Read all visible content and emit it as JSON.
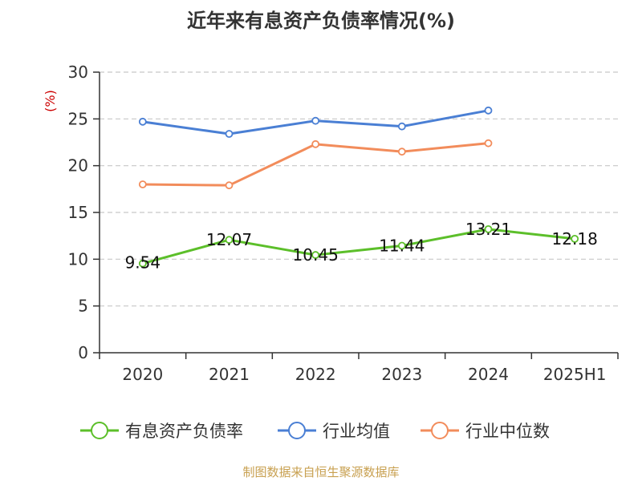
{
  "chart_data": {
    "type": "line",
    "title": "近年来有息资产负债率情况(%)",
    "ylabel": "(%)",
    "xlabel": "",
    "categories": [
      "2020",
      "2021",
      "2022",
      "2023",
      "2024",
      "2025H1"
    ],
    "ylim": [
      0,
      30
    ],
    "yticks": [
      0,
      5,
      10,
      15,
      20,
      25,
      30
    ],
    "grid": "horizontal-dashed",
    "legend_position": "bottom",
    "series": [
      {
        "name": "有息资产负债率",
        "color": "#5cbf2a",
        "values": [
          9.54,
          12.07,
          10.45,
          11.44,
          13.21,
          12.18
        ],
        "labels": [
          "9.54",
          "12.07",
          "10.45",
          "11.44",
          "13.21",
          "12.18"
        ]
      },
      {
        "name": "行业均值",
        "color": "#4a7fd4",
        "values": [
          24.7,
          23.4,
          24.8,
          24.2,
          25.9,
          null
        ],
        "labels": []
      },
      {
        "name": "行业中位数",
        "color": "#f28c5b",
        "values": [
          18.0,
          17.9,
          22.3,
          21.5,
          22.4,
          null
        ],
        "labels": []
      }
    ],
    "source": "制图数据来自恒生聚源数据库"
  },
  "colors": {
    "title": "#333333",
    "axis": "#333333",
    "ylabel": "#cc0000",
    "grid": "#c8c8c8",
    "source": "#c8a050"
  }
}
